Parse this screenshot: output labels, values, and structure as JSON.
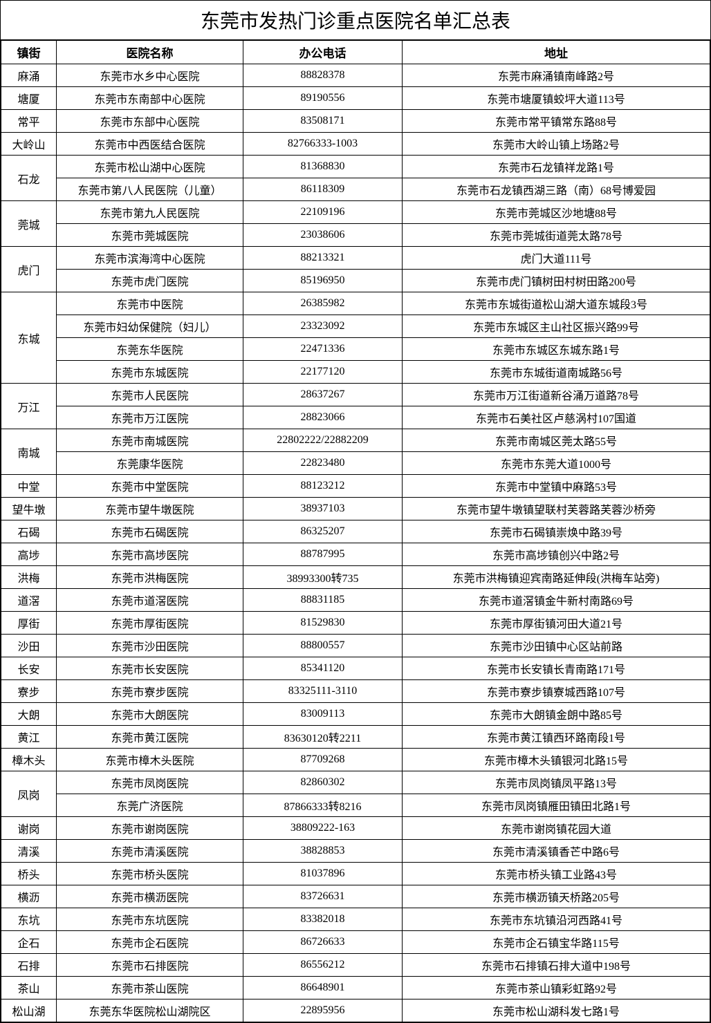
{
  "title": "东莞市发热门诊重点医院名单汇总表",
  "headers": {
    "town": "镇街",
    "hospital": "医院名称",
    "phone": "办公电话",
    "address": "地址"
  },
  "groups": [
    {
      "town": "麻涌",
      "rows": [
        {
          "hospital": "东莞市水乡中心医院",
          "phone": "88828378",
          "address": "东莞市麻涌镇南峰路2号"
        }
      ]
    },
    {
      "town": "塘厦",
      "rows": [
        {
          "hospital": "东莞市东南部中心医院",
          "phone": "89190556",
          "address": "东莞市塘厦镇蛟坪大道113号"
        }
      ]
    },
    {
      "town": "常平",
      "rows": [
        {
          "hospital": "东莞市东部中心医院",
          "phone": "83508171",
          "address": "东莞市常平镇常东路88号"
        }
      ]
    },
    {
      "town": "大岭山",
      "rows": [
        {
          "hospital": "东莞市中西医结合医院",
          "phone": "82766333-1003",
          "address": "东莞市大岭山镇上场路2号"
        }
      ]
    },
    {
      "town": "石龙",
      "rows": [
        {
          "hospital": "东莞市松山湖中心医院",
          "phone": "81368830",
          "address": "东莞市石龙镇祥龙路1号"
        },
        {
          "hospital": "东莞市第八人民医院（儿童）",
          "phone": "86118309",
          "address": "东莞市石龙镇西湖三路（南）68号博爱园"
        }
      ]
    },
    {
      "town": "莞城",
      "rows": [
        {
          "hospital": "东莞市第九人民医院",
          "phone": "22109196",
          "address": "东莞市莞城区沙地塘88号"
        },
        {
          "hospital": "东莞市莞城医院",
          "phone": "23038606",
          "address": "东莞市莞城街道莞太路78号"
        }
      ]
    },
    {
      "town": "虎门",
      "rows": [
        {
          "hospital": "东莞市滨海湾中心医院",
          "phone": "88213321",
          "address": "虎门大道111号"
        },
        {
          "hospital": "东莞市虎门医院",
          "phone": "85196950",
          "address": "东莞市虎门镇树田村树田路200号"
        }
      ]
    },
    {
      "town": "东城",
      "rows": [
        {
          "hospital": "东莞市中医院",
          "phone": "26385982",
          "address": "东莞市东城街道松山湖大道东城段3号"
        },
        {
          "hospital": "东莞市妇幼保健院（妇儿）",
          "phone": "23323092",
          "address": "东莞市东城区主山社区振兴路99号"
        },
        {
          "hospital": "东莞东华医院",
          "phone": "22471336",
          "address": "东莞市东城区东城东路1号"
        },
        {
          "hospital": "东莞市东城医院",
          "phone": "22177120",
          "address": "东莞市东城街道南城路56号"
        }
      ]
    },
    {
      "town": "万江",
      "rows": [
        {
          "hospital": "东莞市人民医院",
          "phone": "28637267",
          "address": "东莞市万江街道新谷涌万道路78号"
        },
        {
          "hospital": "东莞市万江医院",
          "phone": "28823066",
          "address": "东莞市石美社区卢慈涡村107国道"
        }
      ]
    },
    {
      "town": "南城",
      "rows": [
        {
          "hospital": "东莞市南城医院",
          "phone": "22802222/22882209",
          "address": "东莞市南城区莞太路55号"
        },
        {
          "hospital": "东莞康华医院",
          "phone": "22823480",
          "address": "东莞市东莞大道1000号"
        }
      ]
    },
    {
      "town": "中堂",
      "rows": [
        {
          "hospital": "东莞市中堂医院",
          "phone": "88123212",
          "address": "东莞市中堂镇中麻路53号"
        }
      ]
    },
    {
      "town": "望牛墩",
      "rows": [
        {
          "hospital": "东莞市望牛墩医院",
          "phone": "38937103",
          "address": "东莞市望牛墩镇望联村芙蓉路芙蓉沙桥旁"
        }
      ]
    },
    {
      "town": "石碣",
      "rows": [
        {
          "hospital": "东莞市石碣医院",
          "phone": "86325207",
          "address": "东莞市石碣镇崇焕中路39号"
        }
      ]
    },
    {
      "town": "高埗",
      "rows": [
        {
          "hospital": "东莞市高埗医院",
          "phone": "88787995",
          "address": "东莞市高埗镇创兴中路2号"
        }
      ]
    },
    {
      "town": "洪梅",
      "rows": [
        {
          "hospital": "东莞市洪梅医院",
          "phone": "38993300转735",
          "address": "东莞市洪梅镇迎宾南路延伸段(洪梅车站旁)"
        }
      ]
    },
    {
      "town": "道滘",
      "rows": [
        {
          "hospital": "东莞市道滘医院",
          "phone": "88831185",
          "address": "东莞市道滘镇金牛新村南路69号"
        }
      ]
    },
    {
      "town": "厚街",
      "rows": [
        {
          "hospital": "东莞市厚街医院",
          "phone": "81529830",
          "address": "东莞市厚街镇河田大道21号"
        }
      ]
    },
    {
      "town": "沙田",
      "rows": [
        {
          "hospital": "东莞市沙田医院",
          "phone": "88800557",
          "address": "东莞市沙田镇中心区站前路"
        }
      ]
    },
    {
      "town": "长安",
      "rows": [
        {
          "hospital": "东莞市长安医院",
          "phone": "85341120",
          "address": "东莞市长安镇长青南路171号"
        }
      ]
    },
    {
      "town": "寮步",
      "rows": [
        {
          "hospital": "东莞市寮步医院",
          "phone": "83325111-3110",
          "address": "东莞市寮步镇寮城西路107号"
        }
      ]
    },
    {
      "town": "大朗",
      "rows": [
        {
          "hospital": "东莞市大朗医院",
          "phone": "83009113",
          "address": "东莞市大朗镇金朗中路85号"
        }
      ]
    },
    {
      "town": "黄江",
      "rows": [
        {
          "hospital": "东莞市黄江医院",
          "phone": "83630120转2211",
          "address": "东莞市黄江镇西环路南段1号"
        }
      ]
    },
    {
      "town": "樟木头",
      "rows": [
        {
          "hospital": "东莞市樟木头医院",
          "phone": "87709268",
          "address": "东莞市樟木头镇银河北路15号"
        }
      ]
    },
    {
      "town": "凤岗",
      "rows": [
        {
          "hospital": "东莞市凤岗医院",
          "phone": "82860302",
          "address": "东莞市凤岗镇凤平路13号"
        },
        {
          "hospital": "东莞广济医院",
          "phone": "87866333转8216",
          "address": "东莞市凤岗镇雁田镇田北路1号"
        }
      ]
    },
    {
      "town": "谢岗",
      "rows": [
        {
          "hospital": "东莞市谢岗医院",
          "phone": "38809222-163",
          "address": "东莞市谢岗镇花园大道"
        }
      ]
    },
    {
      "town": "清溪",
      "rows": [
        {
          "hospital": "东莞市清溪医院",
          "phone": "38828853",
          "address": "东莞市清溪镇香芒中路6号"
        }
      ]
    },
    {
      "town": "桥头",
      "rows": [
        {
          "hospital": "东莞市桥头医院",
          "phone": "81037896",
          "address": "东莞市桥头镇工业路43号"
        }
      ]
    },
    {
      "town": "横沥",
      "rows": [
        {
          "hospital": "东莞市横沥医院",
          "phone": "83726631",
          "address": "东莞市横沥镇天桥路205号"
        }
      ]
    },
    {
      "town": "东坑",
      "rows": [
        {
          "hospital": "东莞市东坑医院",
          "phone": "83382018",
          "address": "东莞市东坑镇沿河西路41号"
        }
      ]
    },
    {
      "town": "企石",
      "rows": [
        {
          "hospital": "东莞市企石医院",
          "phone": "86726633",
          "address": "东莞市企石镇宝华路115号"
        }
      ]
    },
    {
      "town": "石排",
      "rows": [
        {
          "hospital": "东莞市石排医院",
          "phone": "86556212",
          "address": "东莞市石排镇石排大道中198号"
        }
      ]
    },
    {
      "town": "茶山",
      "rows": [
        {
          "hospital": "东莞市茶山医院",
          "phone": "86648901",
          "address": "东莞市茶山镇彩虹路92号"
        }
      ]
    },
    {
      "town": "松山湖",
      "rows": [
        {
          "hospital": "东莞东华医院松山湖院区",
          "phone": "22895956",
          "address": "东莞市松山湖科发七路1号"
        }
      ]
    }
  ]
}
